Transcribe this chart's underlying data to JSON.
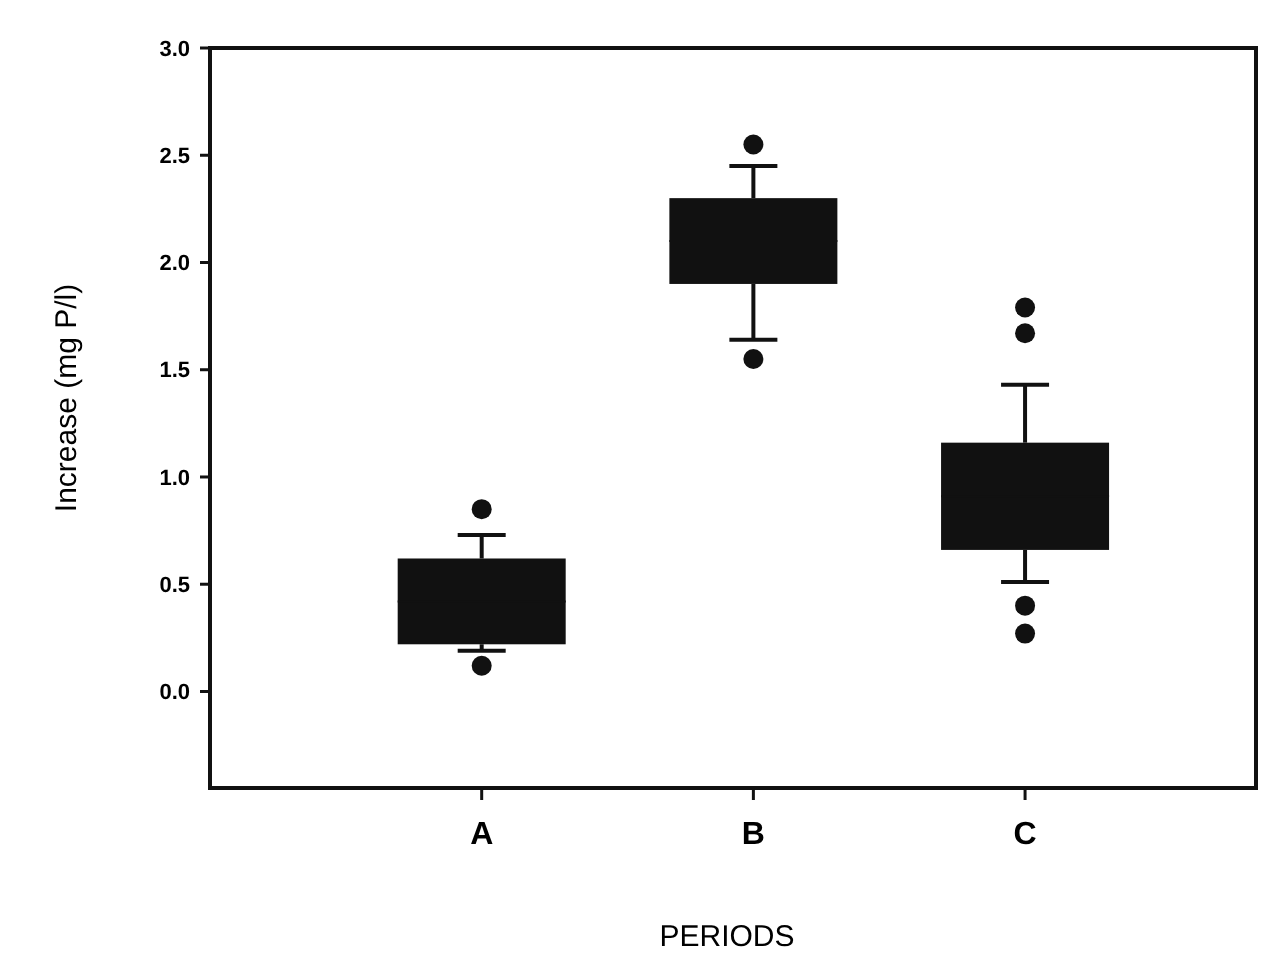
{
  "chart_data": {
    "type": "box",
    "xlabel": "PERIODS",
    "ylabel": "Increase (mg P/l)",
    "categories": [
      "A",
      "B",
      "C"
    ],
    "color": "#111111",
    "ylim": [
      -0.45,
      3.0
    ],
    "yticks": [
      {
        "value": 0,
        "label": "0.0"
      },
      {
        "value": 0.5,
        "label": "0.5"
      },
      {
        "value": 1,
        "label": "1.0"
      },
      {
        "value": 1.5,
        "label": "1.5"
      },
      {
        "value": 2,
        "label": "2.0"
      },
      {
        "value": 2.5,
        "label": "2.5"
      },
      {
        "value": 3,
        "label": "3.0"
      }
    ],
    "boxes": [
      {
        "low": 0.19,
        "q1": 0.22,
        "median": 0.42,
        "q3": 0.62,
        "high": 0.73,
        "outliers": [
          0.85,
          0.12
        ]
      },
      {
        "low": 1.64,
        "q1": 1.9,
        "median": 2.1,
        "q3": 2.3,
        "high": 2.45,
        "outliers": [
          2.55,
          1.55
        ]
      },
      {
        "low": 0.51,
        "q1": 0.66,
        "median": 0.91,
        "q3": 1.16,
        "high": 1.43,
        "outliers": [
          1.79,
          1.67,
          0.4,
          0.27
        ]
      }
    ],
    "grid": false
  }
}
